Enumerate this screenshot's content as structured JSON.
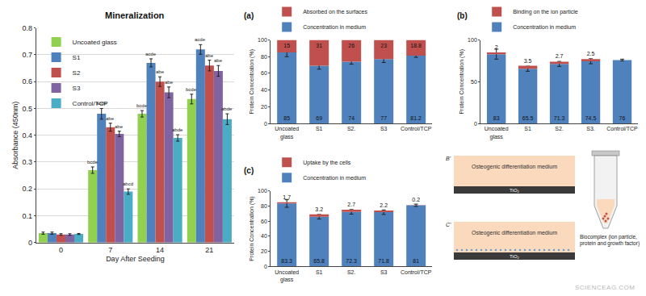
{
  "chart_data": [
    {
      "type": "bar",
      "title": "Mineralization",
      "x_label": "Day After Seeding",
      "y_label": "Absorbance (450nm)",
      "categories": [
        "0",
        "7",
        "14",
        "21"
      ],
      "series": [
        {
          "name": "Uncoated glass",
          "color": "#92d050",
          "values": [
            0.035,
            0.27,
            0.48,
            0.535
          ],
          "errors": [
            0.004,
            0.012,
            0.012,
            0.018
          ],
          "letters": [
            null,
            "bcde",
            "bcde",
            "bcde"
          ]
        },
        {
          "name": "S1",
          "color": "#4f81bd",
          "values": [
            0.035,
            0.48,
            0.67,
            0.72
          ],
          "errors": [
            0.004,
            0.02,
            0.015,
            0.018
          ],
          "letters": [
            null,
            "acde",
            "acde",
            "acde"
          ]
        },
        {
          "name": "S2",
          "color": "#c0504d",
          "values": [
            0.03,
            0.43,
            0.6,
            0.66
          ],
          "errors": [
            0.003,
            0.015,
            0.018,
            0.02
          ],
          "letters": [
            null,
            "abe",
            "abe",
            "abe"
          ]
        },
        {
          "name": "S3",
          "color": "#8064a2",
          "values": [
            0.03,
            0.405,
            0.56,
            0.64
          ],
          "errors": [
            0.003,
            0.01,
            0.02,
            0.02
          ],
          "letters": [
            null,
            "abe",
            "abe",
            "abe"
          ]
        },
        {
          "name": "Control/TCP",
          "color": "#4bacc6",
          "values": [
            0.032,
            0.19,
            0.39,
            0.46
          ],
          "errors": [
            0.002,
            0.01,
            0.012,
            0.02
          ],
          "letters": [
            null,
            "abcd",
            "abde",
            "abde"
          ]
        }
      ],
      "ylim": [
        0,
        0.8
      ],
      "yticks": [
        0,
        0.1,
        0.2,
        0.3,
        0.4,
        0.5,
        0.6,
        0.7,
        0.8
      ],
      "grid": true,
      "legend": "upper left"
    },
    {
      "type": "bar",
      "stacked": true,
      "title": "(a)",
      "y_label": "Protein Concentration (%)",
      "categories": [
        "Uncoated glass",
        "S1",
        "S2.",
        "S3",
        "Control/TCP"
      ],
      "series": [
        {
          "name": "Concentration in medium",
          "color": "#4f81bd",
          "values": [
            85,
            69,
            74,
            77,
            81.2
          ],
          "errors": [
            5,
            4,
            3,
            4,
            2
          ]
        },
        {
          "name": "Absorbed on the surfaces",
          "color": "#c0504d",
          "values": [
            15,
            31,
            26,
            23,
            18.8
          ]
        }
      ],
      "ylim": [
        0,
        100
      ],
      "yticks": [
        0,
        20,
        40,
        60,
        80,
        100
      ],
      "grid": false,
      "data_labels": true,
      "legend": "top"
    },
    {
      "type": "bar",
      "stacked": true,
      "title": "(b)",
      "y_label": "Protein Concentration (%)",
      "categories": [
        "Uncoated glass",
        "S1",
        "S2.",
        "S3.",
        "Control/TCP"
      ],
      "series": [
        {
          "name": "Concentration in medium",
          "color": "#4f81bd",
          "values": [
            83,
            65.5,
            71.3,
            74.5,
            76
          ],
          "errors": [
            6,
            3,
            3,
            3,
            1
          ]
        },
        {
          "name": "Binding on the ion particle",
          "color": "#c0504d",
          "values": [
            2,
            3.5,
            2.7,
            2.5,
            0
          ]
        }
      ],
      "ylim": [
        0,
        100
      ],
      "yticks": [
        0,
        50,
        100
      ],
      "grid": false,
      "data_labels": true,
      "legend": "top"
    },
    {
      "type": "bar",
      "stacked": true,
      "title": "(c)",
      "y_label": "Protein Concentration (%)",
      "categories": [
        "Uncoated glass",
        "S1",
        "S2.",
        "S3",
        "Control/TCP"
      ],
      "series": [
        {
          "name": "Concentration in medium",
          "color": "#4f81bd",
          "values": [
            83.3,
            65.8,
            72.3,
            71.8,
            81
          ],
          "errors": [
            5,
            3,
            3,
            3,
            1.5
          ]
        },
        {
          "name": "Uptake by the cells",
          "color": "#c0504d",
          "values": [
            1.7,
            3.2,
            2.7,
            2.2,
            0.2
          ]
        }
      ],
      "ylim": [
        0,
        100
      ],
      "yticks": [
        0,
        20,
        40,
        60,
        80,
        100
      ],
      "grid": false,
      "data_labels": true,
      "legend": "top"
    }
  ],
  "diagram": {
    "panels": [
      {
        "label": "B'",
        "medium": "Osteogenic differentiation medium",
        "substrate": "TiO₂"
      },
      {
        "label": "C'",
        "medium": "Osteogenic differentiation medium",
        "substrate": "TiO₂"
      }
    ],
    "tube_label": "Biocomplex (ion particle, protein and growth factor)"
  },
  "watermark": "SCIENCEAG.COM"
}
